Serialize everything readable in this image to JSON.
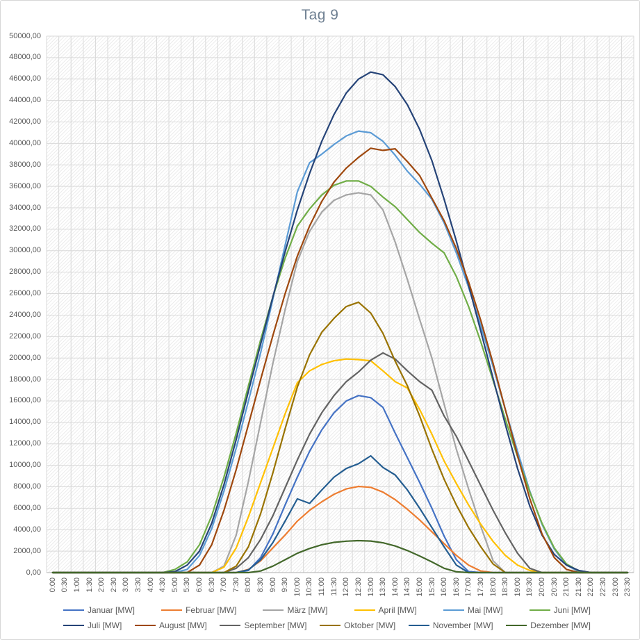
{
  "title": "Tag 9",
  "title_color": "#6e7f91",
  "axis": {
    "tick_color": "#595959",
    "gridline_color": "#d9d9d9",
    "axis_line_color": "#bfbfbf"
  },
  "chart_data": {
    "type": "line",
    "title": "Tag 9",
    "xlabel": "",
    "ylabel": "",
    "ylim": [
      0,
      50000
    ],
    "y_tick_step": 2000,
    "grid": "horizontal and vertical, light gray, hatched plot background",
    "legend_position": "bottom",
    "y_ticks": [
      "0,00",
      "2000,00",
      "4000,00",
      "6000,00",
      "8000,00",
      "10000,00",
      "12000,00",
      "14000,00",
      "16000,00",
      "18000,00",
      "20000,00",
      "22000,00",
      "24000,00",
      "26000,00",
      "28000,00",
      "30000,00",
      "32000,00",
      "34000,00",
      "36000,00",
      "38000,00",
      "40000,00",
      "42000,00",
      "44000,00",
      "46000,00",
      "48000,00",
      "50000,00"
    ],
    "x": [
      "0:00",
      "0:30",
      "1:00",
      "1:30",
      "2:00",
      "2:30",
      "3:00",
      "3:30",
      "4:00",
      "4:30",
      "5:00",
      "5:30",
      "6:00",
      "6:30",
      "7:00",
      "7:30",
      "8:00",
      "8:30",
      "9:00",
      "9:30",
      "10:00",
      "10:30",
      "11:00",
      "11:30",
      "12:00",
      "12:30",
      "13:00",
      "13:30",
      "14:00",
      "14:30",
      "15:00",
      "15:30",
      "16:00",
      "16:30",
      "17:00",
      "17:30",
      "18:00",
      "18:30",
      "19:00",
      "19:30",
      "20:00",
      "20:30",
      "21:00",
      "21:30",
      "22:00",
      "22:30",
      "23:00",
      "23:30"
    ],
    "series": [
      {
        "name": "Januar [MW]",
        "color": "#4472C4",
        "values": [
          0,
          0,
          0,
          0,
          0,
          0,
          0,
          0,
          0,
          0,
          0,
          0,
          0,
          0,
          0,
          0,
          200,
          1400,
          3600,
          6300,
          8900,
          11300,
          13300,
          14900,
          16000,
          16500,
          16300,
          15400,
          13000,
          10700,
          8400,
          6000,
          3400,
          1200,
          100,
          0,
          0,
          0,
          0,
          0,
          0,
          0,
          0,
          0,
          0,
          0,
          0,
          0
        ]
      },
      {
        "name": "Februar [MW]",
        "color": "#ED7D31",
        "values": [
          0,
          0,
          0,
          0,
          0,
          0,
          0,
          0,
          0,
          0,
          0,
          0,
          0,
          0,
          0,
          0,
          300,
          1100,
          2300,
          3500,
          4800,
          5800,
          6600,
          7300,
          7800,
          8030,
          7950,
          7500,
          6800,
          5900,
          4900,
          3800,
          2700,
          1600,
          700,
          150,
          0,
          0,
          0,
          0,
          0,
          0,
          0,
          0,
          0,
          0,
          0,
          0
        ]
      },
      {
        "name": "März [MW]",
        "color": "#A5A5A5",
        "values": [
          0,
          0,
          0,
          0,
          0,
          0,
          0,
          0,
          0,
          0,
          0,
          0,
          0,
          0,
          600,
          3500,
          8500,
          14000,
          19500,
          24500,
          29000,
          31800,
          33600,
          34700,
          35200,
          35400,
          35200,
          33800,
          30800,
          27300,
          23600,
          20000,
          15700,
          11500,
          7800,
          4300,
          1100,
          0,
          0,
          0,
          0,
          0,
          0,
          0,
          0,
          0,
          0,
          0
        ]
      },
      {
        "name": "April [MW]",
        "color": "#FFC000",
        "values": [
          0,
          0,
          0,
          0,
          0,
          0,
          0,
          0,
          0,
          0,
          0,
          0,
          0,
          0,
          500,
          2300,
          5200,
          8400,
          11600,
          14800,
          17700,
          18800,
          19400,
          19750,
          19900,
          19850,
          19750,
          18800,
          17800,
          17200,
          15200,
          12900,
          10400,
          8300,
          6300,
          4500,
          2900,
          1600,
          700,
          200,
          0,
          0,
          0,
          0,
          0,
          0,
          0,
          0
        ]
      },
      {
        "name": "Mai [MW]",
        "color": "#5B9BD5",
        "values": [
          0,
          0,
          0,
          0,
          0,
          0,
          0,
          0,
          0,
          0,
          0,
          300,
          1600,
          4100,
          7600,
          11600,
          16000,
          20500,
          25500,
          30500,
          35500,
          38200,
          39000,
          39900,
          40700,
          41150,
          41000,
          40200,
          38900,
          37400,
          36200,
          34800,
          32600,
          29800,
          26600,
          23000,
          19200,
          15200,
          11300,
          7600,
          4500,
          2200,
          700,
          100,
          0,
          0,
          0,
          0
        ]
      },
      {
        "name": "Juni [MW]",
        "color": "#70AD47",
        "values": [
          0,
          0,
          0,
          0,
          0,
          0,
          0,
          0,
          0,
          0,
          300,
          1000,
          2600,
          5300,
          8900,
          13000,
          17400,
          21700,
          25700,
          29300,
          32300,
          33900,
          35200,
          36100,
          36500,
          36500,
          36000,
          35000,
          34100,
          32900,
          31700,
          30700,
          29800,
          27600,
          24800,
          21500,
          17900,
          14300,
          10800,
          7500,
          4600,
          2300,
          800,
          150,
          0,
          0,
          0,
          0
        ]
      },
      {
        "name": "Juli [MW]",
        "color": "#264478",
        "values": [
          0,
          0,
          0,
          0,
          0,
          0,
          0,
          0,
          0,
          0,
          100,
          700,
          2000,
          4600,
          8200,
          12400,
          16900,
          21300,
          25700,
          29900,
          33800,
          37200,
          40200,
          42700,
          44700,
          46000,
          46650,
          46400,
          45300,
          43600,
          41300,
          38400,
          34800,
          30900,
          26800,
          22500,
          18100,
          13800,
          9700,
          6200,
          3500,
          1700,
          700,
          200,
          0,
          0,
          0,
          0
        ]
      },
      {
        "name": "August [MW]",
        "color": "#9E480E",
        "values": [
          0,
          0,
          0,
          0,
          0,
          0,
          0,
          0,
          0,
          0,
          0,
          0,
          700,
          2600,
          5800,
          9600,
          13800,
          18000,
          22100,
          26000,
          29500,
          32300,
          34600,
          36400,
          37700,
          38700,
          39550,
          39350,
          39500,
          38300,
          37000,
          34900,
          32800,
          30200,
          27100,
          23500,
          19500,
          15200,
          10900,
          6900,
          3600,
          1400,
          300,
          0,
          0,
          0,
          0,
          0
        ]
      },
      {
        "name": "September [MW]",
        "color": "#636363",
        "values": [
          0,
          0,
          0,
          0,
          0,
          0,
          0,
          0,
          0,
          0,
          0,
          0,
          0,
          0,
          0,
          400,
          1400,
          3100,
          5300,
          7900,
          10500,
          12900,
          14900,
          16500,
          17800,
          18700,
          19800,
          20470,
          19900,
          18800,
          17800,
          17000,
          14600,
          12700,
          10400,
          8100,
          5800,
          3700,
          1800,
          400,
          0,
          0,
          0,
          0,
          0,
          0,
          0,
          0
        ]
      },
      {
        "name": "Oktober [MW]",
        "color": "#997300",
        "values": [
          0,
          0,
          0,
          0,
          0,
          0,
          0,
          0,
          0,
          0,
          0,
          0,
          0,
          0,
          0,
          600,
          2400,
          5500,
          9300,
          13400,
          17300,
          20300,
          22400,
          23700,
          24800,
          25200,
          24200,
          22300,
          19700,
          17400,
          14600,
          11500,
          8700,
          6300,
          4200,
          2400,
          800,
          0,
          0,
          0,
          0,
          0,
          0,
          0,
          0,
          0,
          0,
          0
        ]
      },
      {
        "name": "November [MW]",
        "color": "#255E91",
        "values": [
          0,
          0,
          0,
          0,
          0,
          0,
          0,
          0,
          0,
          0,
          0,
          0,
          0,
          0,
          0,
          0,
          250,
          1200,
          2800,
          4800,
          6870,
          6450,
          7700,
          8900,
          9700,
          10150,
          10880,
          9800,
          9100,
          7700,
          6000,
          4200,
          2400,
          700,
          0,
          0,
          0,
          0,
          0,
          0,
          0,
          0,
          0,
          0,
          0,
          0,
          0,
          0
        ]
      },
      {
        "name": "Dezember [MW]",
        "color": "#43682B",
        "values": [
          0,
          0,
          0,
          0,
          0,
          0,
          0,
          0,
          0,
          0,
          0,
          0,
          0,
          0,
          0,
          0,
          0,
          150,
          600,
          1200,
          1800,
          2250,
          2600,
          2820,
          2930,
          2980,
          2940,
          2780,
          2480,
          2050,
          1550,
          1000,
          400,
          80,
          0,
          0,
          0,
          0,
          0,
          0,
          0,
          0,
          0,
          0,
          0,
          0,
          0,
          0
        ]
      }
    ]
  }
}
